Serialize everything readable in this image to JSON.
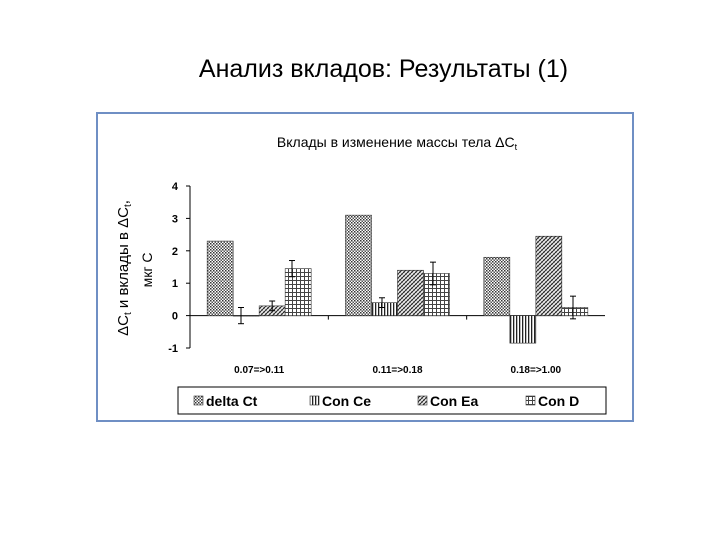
{
  "slide": {
    "title": "Анализ вкладов: Результаты (1)"
  },
  "colors": {
    "frame": "#6f8fc4",
    "axis": "#000000"
  },
  "chart_data": {
    "type": "bar",
    "title": "Вклады в изменение массы тела ΔCt",
    "title_parts": {
      "main": "Вклады в изменение массы тела ",
      "delta": "ΔC",
      "sub": "t"
    },
    "ylabel_line1": {
      "delta": "ΔC",
      "sub": "t",
      "rest": " и вклады в ",
      "delta2": "ΔC",
      "sub2": "t",
      "tail": ","
    },
    "ylabel_line2": "мкг C",
    "ylim": [
      -1,
      4
    ],
    "yticks": [
      "4",
      "3",
      "2",
      "1",
      "0",
      "-1"
    ],
    "categories": [
      "0.07=>0.11",
      "0.11=>0.18",
      "0.18=>1.00"
    ],
    "legend_position": "bottom",
    "series": [
      {
        "name": "delta Ct",
        "pattern": "dots",
        "values": [
          2.3,
          3.1,
          1.8
        ],
        "errors": [
          null,
          null,
          null
        ]
      },
      {
        "name": "Con Ce",
        "pattern": "vlines",
        "values": [
          0.0,
          0.4,
          -0.85
        ],
        "errors": [
          0.25,
          0.15,
          null
        ]
      },
      {
        "name": "Con Ea",
        "pattern": "hatch",
        "values": [
          0.3,
          1.4,
          2.45
        ],
        "errors": [
          0.15,
          null,
          null
        ]
      },
      {
        "name": "Con D",
        "pattern": "grid",
        "values": [
          1.45,
          1.3,
          0.25
        ],
        "errors": [
          0.25,
          0.35,
          0.35
        ]
      }
    ]
  }
}
